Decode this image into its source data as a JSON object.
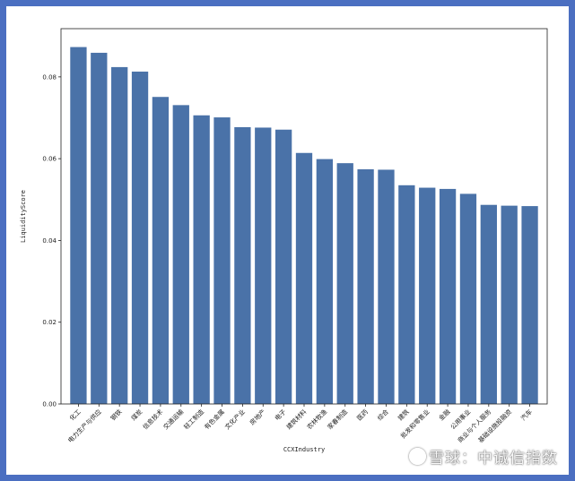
{
  "chart_data": {
    "type": "bar",
    "xlabel": "CCXIndustry",
    "ylabel": "LiquidityScore",
    "ylim": [
      0,
      0.0918
    ],
    "yticks": [
      0.0,
      0.02,
      0.04,
      0.06,
      0.08
    ],
    "ytick_labels": [
      "0.00",
      "0.02",
      "0.04",
      "0.06",
      "0.08"
    ],
    "grid": false,
    "bar_color": "#4a72a8",
    "categories": [
      "化工",
      "电力生产与供应",
      "钢铁",
      "煤炭",
      "信息技术",
      "交通运输",
      "轻工制造",
      "有色金属",
      "文化产业",
      "房地产",
      "电子",
      "建筑材料",
      "农林牧渔",
      "家春制造",
      "医药",
      "综合",
      "建筑",
      "批发和零售业",
      "金融",
      "公用事业",
      "商业与个人服务",
      "基础设施投融资",
      "汽车"
    ],
    "values": [
      0.0873,
      0.0859,
      0.0824,
      0.0813,
      0.0751,
      0.0731,
      0.0706,
      0.0701,
      0.0677,
      0.0676,
      0.0671,
      0.0614,
      0.0599,
      0.0589,
      0.0574,
      0.0573,
      0.0535,
      0.0529,
      0.0526,
      0.0514,
      0.0487,
      0.0485,
      0.0484
    ]
  },
  "watermark": {
    "icon": "snowball-logo-icon",
    "text": "雪球：中诚信指数"
  }
}
